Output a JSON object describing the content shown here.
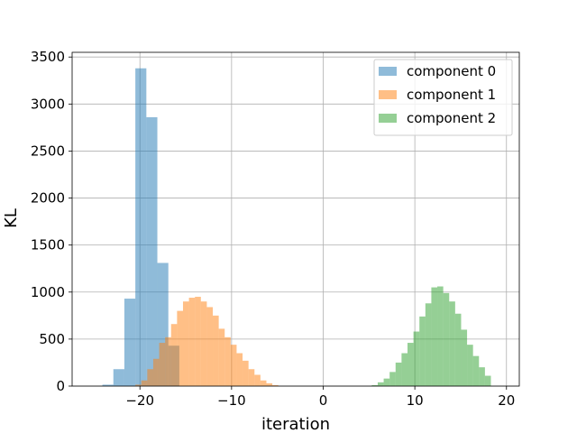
{
  "chart_data": {
    "type": "histogram",
    "title": "",
    "xlabel": "iteration",
    "ylabel": "KL",
    "xlim": [
      -27.4,
      21.4
    ],
    "ylim": [
      0,
      3550
    ],
    "xticks": [
      -20,
      -10,
      0,
      10,
      20
    ],
    "xtick_labels": [
      "−20",
      "−10",
      "0",
      "10",
      "20"
    ],
    "yticks": [
      0,
      500,
      1000,
      1500,
      2000,
      2500,
      3000,
      3500
    ],
    "ytick_labels": [
      "0",
      "500",
      "1000",
      "1500",
      "2000",
      "2500",
      "3000",
      "3500"
    ],
    "grid": true,
    "legend_position": "upper right",
    "series": [
      {
        "name": "component 0",
        "color": "#1f77b4",
        "alpha": 0.5,
        "bin_edges": [
          -24.1,
          -22.9,
          -21.7,
          -20.5,
          -19.3,
          -18.1,
          -16.9,
          -15.7
        ],
        "counts": [
          15,
          180,
          930,
          3380,
          2860,
          1310,
          430
        ]
      },
      {
        "name": "component 1",
        "color": "#ff7f0e",
        "alpha": 0.5,
        "bin_edges": [
          -20.5,
          -19.85,
          -19.2,
          -18.55,
          -17.9,
          -17.25,
          -16.6,
          -15.95,
          -15.3,
          -14.65,
          -14.0,
          -13.35,
          -12.7,
          -12.05,
          -11.4,
          -10.75,
          -10.1,
          -9.45,
          -8.8,
          -8.15,
          -7.5,
          -6.85,
          -6.2,
          -5.55,
          -4.9
        ],
        "counts": [
          15,
          60,
          180,
          290,
          460,
          520,
          660,
          800,
          900,
          940,
          950,
          900,
          840,
          750,
          610,
          520,
          440,
          350,
          270,
          180,
          120,
          60,
          30,
          10
        ]
      },
      {
        "name": "component 2",
        "color": "#2ca02c",
        "alpha": 0.5,
        "bin_edges": [
          5.3,
          5.95,
          6.6,
          7.25,
          7.9,
          8.55,
          9.2,
          9.85,
          10.5,
          11.15,
          11.8,
          12.45,
          13.1,
          13.75,
          14.4,
          15.05,
          15.7,
          16.35,
          17.0,
          17.65,
          18.3
        ],
        "counts": [
          10,
          40,
          80,
          150,
          250,
          350,
          460,
          580,
          740,
          880,
          1050,
          1060,
          990,
          900,
          770,
          600,
          440,
          320,
          200,
          110
        ]
      }
    ]
  }
}
